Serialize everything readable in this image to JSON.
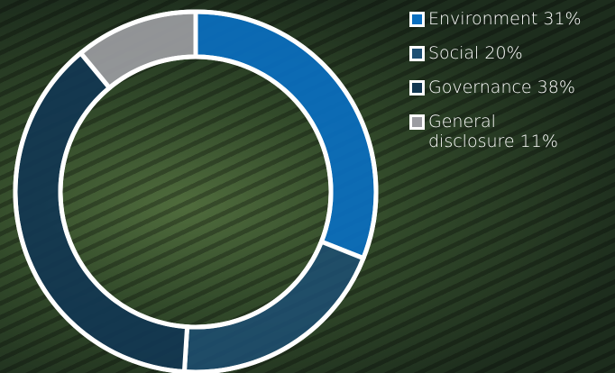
{
  "chart_data": {
    "type": "donut",
    "categories": [
      "Environment",
      "Social",
      "Governance",
      "General disclosure"
    ],
    "values": [
      31,
      20,
      38,
      11
    ],
    "value_labels": [
      "31%",
      "20%",
      "38%",
      "11%"
    ],
    "colors": [
      "#0a6fc0",
      "#1d4f73",
      "#123752",
      "#9b9ca1"
    ]
  }
}
